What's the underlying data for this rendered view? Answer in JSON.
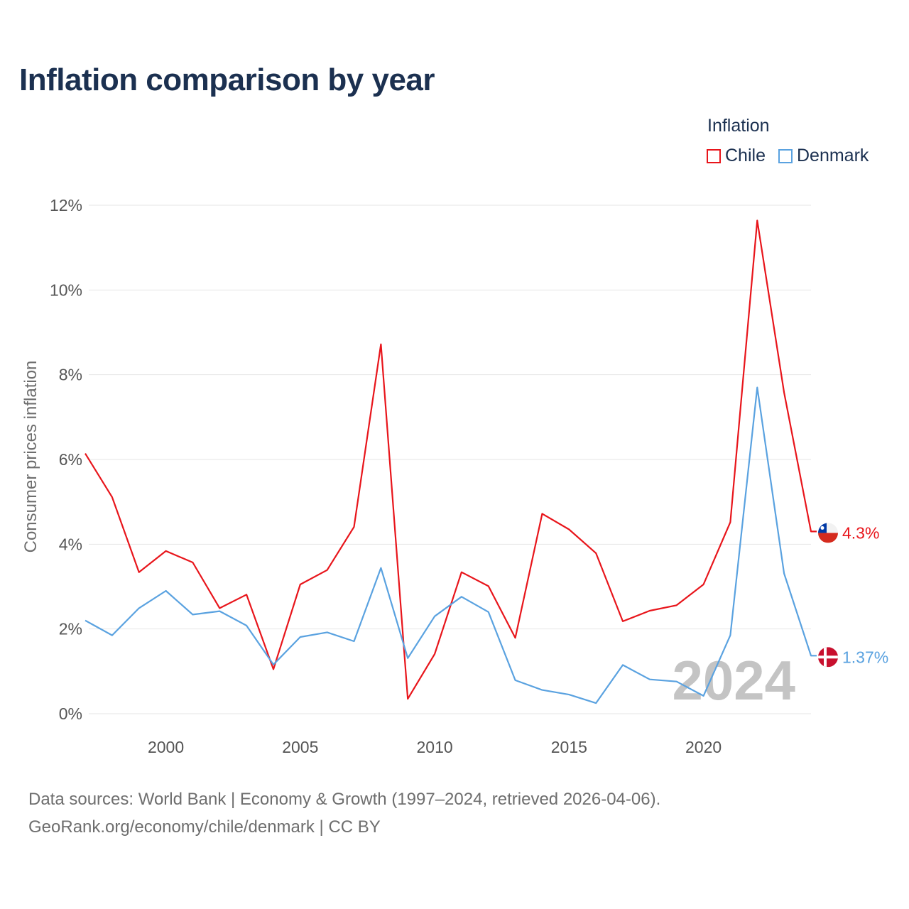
{
  "header": {
    "title": "Inflation comparison by year"
  },
  "legend": {
    "title": "Inflation",
    "items": [
      {
        "label": "Chile",
        "color": "#e8151b"
      },
      {
        "label": "Denmark",
        "color": "#5aa2e0"
      }
    ]
  },
  "footer": {
    "line1": "Data sources: World Bank | Economy & Growth (1997–2024, retrieved 2026-04-06).",
    "line2": "GeoRank.org/economy/chile/denmark | CC BY"
  },
  "chart_data": {
    "type": "line",
    "title": "Inflation comparison by year",
    "ylabel": "Consumer prices inflation",
    "xlabel": "",
    "xlim": [
      1997,
      2024
    ],
    "ylim": [
      0,
      12
    ],
    "yticks": [
      "0%",
      "2%",
      "4%",
      "6%",
      "8%",
      "10%",
      "12%"
    ],
    "xticks": [
      "2000",
      "2005",
      "2010",
      "2015",
      "2020"
    ],
    "watermark_year": "2024",
    "x": [
      1997,
      1998,
      1999,
      2000,
      2001,
      2002,
      2003,
      2004,
      2005,
      2006,
      2007,
      2008,
      2009,
      2010,
      2011,
      2012,
      2013,
      2014,
      2015,
      2016,
      2017,
      2018,
      2019,
      2020,
      2021,
      2022,
      2023,
      2024
    ],
    "series": [
      {
        "name": "Chile",
        "color": "#e8151b",
        "end_label": "4.3%",
        "values": [
          6.14,
          5.11,
          3.34,
          3.84,
          3.57,
          2.49,
          2.81,
          1.05,
          3.05,
          3.39,
          4.41,
          8.72,
          0.35,
          1.41,
          3.34,
          3.01,
          1.79,
          4.72,
          4.35,
          3.79,
          2.18,
          2.43,
          2.56,
          3.05,
          4.52,
          11.64,
          7.58,
          4.3
        ]
      },
      {
        "name": "Denmark",
        "color": "#5aa2e0",
        "end_label": "1.37%",
        "values": [
          2.2,
          1.85,
          2.49,
          2.9,
          2.34,
          2.42,
          2.08,
          1.16,
          1.81,
          1.92,
          1.71,
          3.44,
          1.31,
          2.3,
          2.76,
          2.4,
          0.79,
          0.56,
          0.45,
          0.25,
          1.15,
          0.81,
          0.76,
          0.42,
          1.85,
          7.7,
          3.31,
          1.37
        ]
      }
    ]
  }
}
